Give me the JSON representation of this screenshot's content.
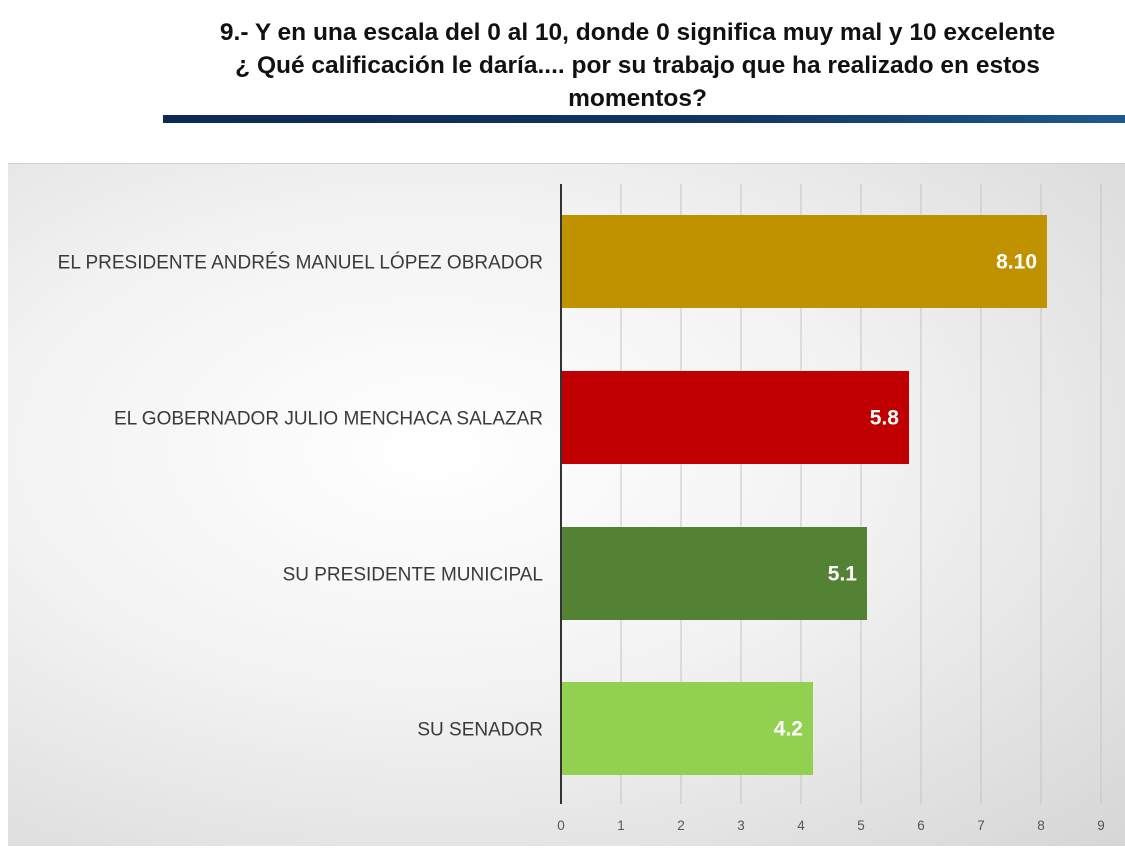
{
  "header": {
    "title_lines": [
      "9.-  Y en una escala del 0 al 10, donde 0 significa muy mal y 10 excelente",
      "¿ Qué calificación le daría.... por su trabajo que ha realizado en estos",
      "momentos?"
    ]
  },
  "chart_data": {
    "type": "bar",
    "orientation": "horizontal",
    "categories": [
      "EL PRESIDENTE ANDRÉS MANUEL LÓPEZ OBRADOR",
      "EL GOBERNADOR JULIO MENCHACA SALAZAR",
      "SU PRESIDENTE MUNICIPAL",
      "SU SENADOR"
    ],
    "values": [
      8.1,
      5.8,
      5.1,
      4.2
    ],
    "value_labels": [
      "8.10",
      "5.8",
      "5.1",
      "4.2"
    ],
    "colors": [
      "#c09200",
      "#c00000",
      "#548235",
      "#92d050"
    ],
    "xlim": [
      0,
      9
    ],
    "xticks": [
      "0",
      "1",
      "2",
      "3",
      "4",
      "5",
      "6",
      "7",
      "8",
      "9"
    ],
    "grid": true,
    "legend": "none"
  }
}
